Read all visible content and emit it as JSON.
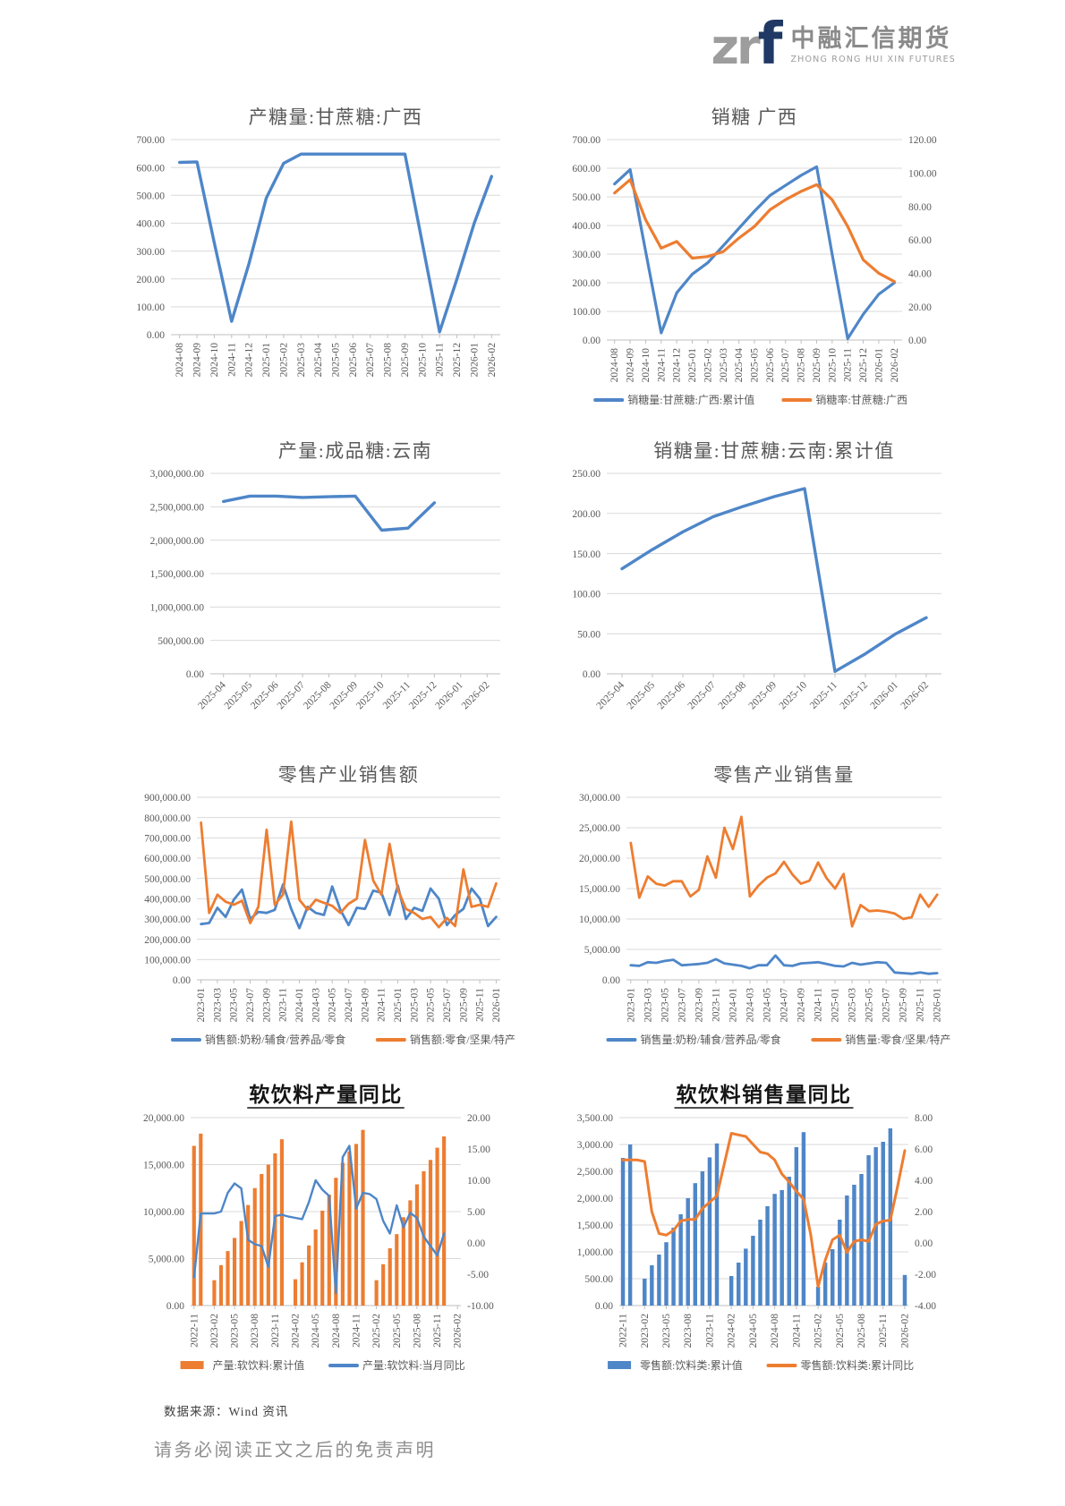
{
  "header": {
    "logo_zr": "zr",
    "logo_f": "f",
    "company_cn": "中融汇信期货",
    "company_en": "ZHONG RONG HUI XIN FUTURES"
  },
  "footer": {
    "source": "数据来源：Wind 资讯",
    "disclaimer": "请务必阅读正文之后的免责声明"
  },
  "colors": {
    "blue": "#4E86C8",
    "orange": "#ED7D31",
    "grid": "#D9D9D9",
    "axis": "#BFBFBF",
    "text": "#595959"
  },
  "chart_data": [
    {
      "type": "line",
      "title": "产糖量:甘蔗糖:广西",
      "title_style": "plain",
      "legend": false,
      "x_label_step": 1,
      "x_label_angle": 90,
      "axes": {
        "left": {
          "min": 0,
          "max": 700,
          "step": 100
        },
        "right": null
      },
      "categories": [
        "2024-08",
        "2024-09",
        "2024-10",
        "2024-11",
        "2024-12",
        "2025-01",
        "2025-02",
        "2025-03",
        "2025-04",
        "2025-05",
        "2025-06",
        "2025-07",
        "2025-08",
        "2025-09",
        "2025-10",
        "2025-11",
        "2025-12",
        "2026-01",
        "2026-02"
      ],
      "series": [
        {
          "name": "产糖量:甘蔗糖:广西",
          "type": "line",
          "axis": "left",
          "color": "blue",
          "lw": 3.4,
          "values": [
            618,
            620,
            330,
            48,
            255,
            490,
            615,
            648,
            648,
            648,
            648,
            648,
            648,
            648,
            330,
            10,
            200,
            400,
            568
          ]
        }
      ]
    },
    {
      "type": "line",
      "title": "销糖 广西",
      "title_style": "plain",
      "legend": true,
      "x_label_step": 1,
      "x_label_angle": 90,
      "axes": {
        "left": {
          "min": 0,
          "max": 700,
          "step": 100
        },
        "right": {
          "min": 0,
          "max": 120,
          "step": 20
        }
      },
      "categories": [
        "2024-08",
        "2024-09",
        "2024-10",
        "2024-11",
        "2024-12",
        "2025-01",
        "2025-02",
        "2025-03",
        "2025-04",
        "2025-05",
        "2025-06",
        "2025-07",
        "2025-08",
        "2025-09",
        "2025-10",
        "2025-11",
        "2025-12",
        "2026-01",
        "2026-02"
      ],
      "series": [
        {
          "name": "销糖量:甘蔗糖:广西:累计值",
          "type": "line",
          "axis": "left",
          "color": "blue",
          "lw": 3.2,
          "values": [
            545,
            595,
            310,
            25,
            165,
            230,
            270,
            330,
            390,
            450,
            505,
            540,
            575,
            605,
            300,
            5,
            90,
            160,
            200
          ]
        },
        {
          "name": "销糖率:甘蔗糖:广西",
          "type": "line",
          "axis": "right",
          "color": "orange",
          "lw": 3.2,
          "values": [
            88,
            96,
            72,
            55,
            59,
            49,
            50,
            53,
            61,
            68,
            78,
            84,
            89,
            93,
            84,
            68,
            48,
            40,
            35
          ]
        }
      ]
    },
    {
      "type": "line",
      "title": "产量:成品糖:云南",
      "title_style": "plain",
      "legend": false,
      "x_label_step": 1,
      "x_label_angle": 45,
      "axes": {
        "left": {
          "min": 0,
          "max": 3000000,
          "step": 500000
        },
        "right": null
      },
      "categories": [
        "2025-04",
        "2025-05",
        "2025-06",
        "2025-07",
        "2025-08",
        "2025-09",
        "2025-10",
        "2025-11",
        "2025-12",
        "2026-01",
        "2026-02"
      ],
      "series": [
        {
          "name": "产量:成品糖:云南",
          "type": "line",
          "axis": "left",
          "color": "blue",
          "lw": 3.4,
          "values": [
            2580000,
            2660000,
            2660000,
            2640000,
            2650000,
            2660000,
            2150000,
            2180000,
            2560000,
            null,
            null
          ]
        }
      ]
    },
    {
      "type": "line",
      "title": "销糖量:甘蔗糖:云南:累计值",
      "title_style": "plain",
      "legend": false,
      "x_label_step": 1,
      "x_label_angle": 45,
      "axes": {
        "left": {
          "min": 0,
          "max": 250,
          "step": 50
        },
        "right": null
      },
      "categories": [
        "2025-04",
        "2025-05",
        "2025-06",
        "2025-07",
        "2025-08",
        "2025-09",
        "2025-10",
        "2025-11",
        "2025-12",
        "2026-01",
        "2026-02"
      ],
      "series": [
        {
          "name": "销糖量:甘蔗糖:云南:累计值",
          "type": "line",
          "axis": "left",
          "color": "blue",
          "lw": 3.4,
          "values": [
            131,
            155,
            177,
            196,
            209,
            221,
            231,
            3,
            25,
            50,
            70
          ]
        }
      ]
    },
    {
      "type": "line",
      "title": "零售产业销售额",
      "title_style": "plain",
      "legend": true,
      "x_label_step": 2,
      "x_label_angle": 90,
      "axes": {
        "left": {
          "min": 0,
          "max": 900000,
          "step": 100000
        },
        "right": null
      },
      "categories": [
        "2023-01",
        "2023-02",
        "2023-03",
        "2023-04",
        "2023-05",
        "2023-06",
        "2023-07",
        "2023-08",
        "2023-09",
        "2023-10",
        "2023-11",
        "2023-12",
        "2024-01",
        "2024-02",
        "2024-03",
        "2024-04",
        "2024-05",
        "2024-06",
        "2024-07",
        "2024-08",
        "2024-09",
        "2024-10",
        "2024-11",
        "2024-12",
        "2025-01",
        "2025-02",
        "2025-03",
        "2025-04",
        "2025-05",
        "2025-06",
        "2025-07",
        "2025-08",
        "2025-09",
        "2025-10",
        "2025-11",
        "2025-12",
        "2026-01"
      ],
      "series": [
        {
          "name": "销售额:奶粉/辅食/营养品/零食",
          "type": "line",
          "axis": "left",
          "color": "blue",
          "lw": 2.8,
          "values": [
            275000,
            280000,
            355000,
            310000,
            395000,
            445000,
            300000,
            335000,
            330000,
            345000,
            470000,
            350000,
            255000,
            360000,
            330000,
            320000,
            460000,
            345000,
            270000,
            355000,
            350000,
            440000,
            430000,
            320000,
            465000,
            300000,
            355000,
            340000,
            450000,
            400000,
            270000,
            320000,
            350000,
            450000,
            400000,
            265000,
            310000
          ]
        },
        {
          "name": "销售额:零食/坚果/特产",
          "type": "line",
          "axis": "left",
          "color": "orange",
          "lw": 2.8,
          "values": [
            775000,
            330000,
            420000,
            385000,
            370000,
            390000,
            280000,
            360000,
            740000,
            370000,
            420000,
            780000,
            395000,
            345000,
            395000,
            380000,
            365000,
            330000,
            375000,
            400000,
            690000,
            490000,
            420000,
            670000,
            445000,
            350000,
            330000,
            300000,
            310000,
            260000,
            305000,
            265000,
            545000,
            360000,
            370000,
            360000,
            475000
          ]
        }
      ]
    },
    {
      "type": "line",
      "title": "零售产业销售量",
      "title_style": "plain",
      "legend": true,
      "x_label_step": 2,
      "x_label_angle": 90,
      "axes": {
        "left": {
          "min": 0,
          "max": 30000,
          "step": 5000
        },
        "right": null
      },
      "categories": [
        "2023-01",
        "2023-02",
        "2023-03",
        "2023-04",
        "2023-05",
        "2023-06",
        "2023-07",
        "2023-08",
        "2023-09",
        "2023-10",
        "2023-11",
        "2023-12",
        "2024-01",
        "2024-02",
        "2024-03",
        "2024-04",
        "2024-05",
        "2024-06",
        "2024-07",
        "2024-08",
        "2024-09",
        "2024-10",
        "2024-11",
        "2024-12",
        "2025-01",
        "2025-02",
        "2025-03",
        "2025-04",
        "2025-05",
        "2025-06",
        "2025-07",
        "2025-08",
        "2025-09",
        "2025-10",
        "2025-11",
        "2025-12",
        "2026-01"
      ],
      "series": [
        {
          "name": "销售量:奶粉/辅食/营养品/零食",
          "type": "line",
          "axis": "left",
          "color": "blue",
          "lw": 2.8,
          "values": [
            2400,
            2300,
            2900,
            2800,
            3100,
            3300,
            2400,
            2500,
            2600,
            2800,
            3400,
            2700,
            2500,
            2300,
            1900,
            2400,
            2400,
            4000,
            2400,
            2300,
            2700,
            2800,
            2900,
            2600,
            2300,
            2200,
            2800,
            2500,
            2700,
            2900,
            2800,
            1200,
            1100,
            1000,
            1200,
            1000,
            1100
          ]
        },
        {
          "name": "销售量:零食/坚果/特产",
          "type": "line",
          "axis": "left",
          "color": "orange",
          "lw": 2.8,
          "values": [
            22500,
            13500,
            17000,
            15800,
            15500,
            16200,
            16200,
            13700,
            14800,
            20300,
            16800,
            25000,
            21500,
            26800,
            13700,
            15500,
            16800,
            17500,
            19400,
            17300,
            15800,
            16300,
            19300,
            16700,
            15000,
            17400,
            8800,
            12300,
            11300,
            11400,
            11200,
            10900,
            10000,
            10300,
            14000,
            12000,
            14000
          ]
        }
      ]
    },
    {
      "type": "bar+line",
      "title": "软饮料产量同比",
      "title_style": "bold",
      "legend": true,
      "x_label_step": 3,
      "x_label_angle": 90,
      "axes": {
        "left": {
          "min": 0,
          "max": 20000,
          "step": 5000
        },
        "right": {
          "min": -10,
          "max": 20,
          "step": 5
        }
      },
      "categories": [
        "2022-11",
        "2022-12",
        "2023-01",
        "2023-02",
        "2023-03",
        "2023-04",
        "2023-05",
        "2023-06",
        "2023-07",
        "2023-08",
        "2023-09",
        "2023-10",
        "2023-11",
        "2023-12",
        "2024-01",
        "2024-02",
        "2024-03",
        "2024-04",
        "2024-05",
        "2024-06",
        "2024-07",
        "2024-08",
        "2024-09",
        "2024-10",
        "2024-11",
        "2024-12",
        "2025-01",
        "2025-02",
        "2025-03",
        "2025-04",
        "2025-05",
        "2025-06",
        "2025-07",
        "2025-08",
        "2025-09",
        "2025-10",
        "2025-11",
        "2025-12",
        "2026-01",
        "2026-02"
      ],
      "series": [
        {
          "name": "产量:软饮料:累计值",
          "type": "bar",
          "axis": "left",
          "color": "orange",
          "values": [
            17000,
            18300,
            null,
            2700,
            4300,
            5800,
            7200,
            9000,
            10700,
            12500,
            14000,
            15000,
            16200,
            17700,
            null,
            2800,
            4600,
            6400,
            8100,
            10100,
            11800,
            13600,
            15200,
            16400,
            17200,
            18700,
            null,
            2700,
            4400,
            6100,
            7600,
            9400,
            11200,
            12900,
            14300,
            15500,
            16800,
            18000,
            null,
            null
          ]
        },
        {
          "name": "产量:软饮料:当月同比",
          "type": "line",
          "axis": "right",
          "color": "blue",
          "lw": 2.4,
          "values": [
            -5.5,
            4.7,
            4.7,
            4.7,
            5.0,
            8.0,
            9.5,
            8.7,
            0.5,
            -0.2,
            -0.5,
            -3.8,
            4.3,
            4.5,
            4.2,
            4.0,
            3.8,
            6.5,
            10.0,
            8.5,
            7.5,
            -8.0,
            13.7,
            15.5,
            5.5,
            8.0,
            7.8,
            7.0,
            3.5,
            1.5,
            6.0,
            2.5,
            4.8,
            4.0,
            1.0,
            -0.5,
            -2.0,
            1.5,
            null,
            null
          ]
        }
      ]
    },
    {
      "type": "bar+line",
      "title": "软饮料销售量同比",
      "title_style": "bold",
      "legend": true,
      "x_label_step": 3,
      "x_label_angle": 90,
      "axes": {
        "left": {
          "min": 0,
          "max": 3500,
          "step": 500
        },
        "right": {
          "min": -4,
          "max": 8,
          "step": 2
        }
      },
      "categories": [
        "2022-11",
        "2022-12",
        "2023-01",
        "2023-02",
        "2023-03",
        "2023-04",
        "2023-05",
        "2023-06",
        "2023-07",
        "2023-08",
        "2023-09",
        "2023-10",
        "2023-11",
        "2023-12",
        "2024-01",
        "2024-02",
        "2024-03",
        "2024-04",
        "2024-05",
        "2024-06",
        "2024-07",
        "2024-08",
        "2024-09",
        "2024-10",
        "2024-11",
        "2024-12",
        "2025-01",
        "2025-02",
        "2025-03",
        "2025-04",
        "2025-05",
        "2025-06",
        "2025-07",
        "2025-08",
        "2025-09",
        "2025-10",
        "2025-11",
        "2025-12",
        "2026-01",
        "2026-02"
      ],
      "series": [
        {
          "name": "零售额:饮料类:累计值",
          "type": "bar",
          "axis": "left",
          "color": "blue",
          "values": [
            2750,
            3000,
            null,
            500,
            750,
            950,
            1180,
            1450,
            1700,
            2000,
            2280,
            2500,
            2760,
            3020,
            null,
            550,
            800,
            1060,
            1300,
            1600,
            1850,
            2080,
            2150,
            2400,
            2950,
            3230,
            null,
            350,
            800,
            1050,
            1600,
            2050,
            2250,
            2450,
            2800,
            2950,
            3050,
            3300,
            null,
            570
          ]
        },
        {
          "name": "零售额:饮料类:累计同比",
          "type": "line",
          "axis": "right",
          "color": "orange",
          "lw": 3.0,
          "values": [
            5.3,
            5.3,
            5.3,
            5.2,
            2.0,
            0.6,
            0.5,
            0.8,
            1.4,
            1.5,
            1.5,
            2.2,
            2.6,
            3.0,
            5.0,
            7.0,
            6.9,
            6.8,
            6.3,
            5.8,
            5.7,
            5.3,
            4.4,
            3.9,
            3.3,
            2.8,
            0.5,
            -2.8,
            -1.1,
            0.2,
            0.5,
            -0.6,
            0.1,
            0.2,
            0.1,
            1.2,
            1.4,
            1.45,
            3.6,
            5.9
          ]
        }
      ]
    }
  ]
}
